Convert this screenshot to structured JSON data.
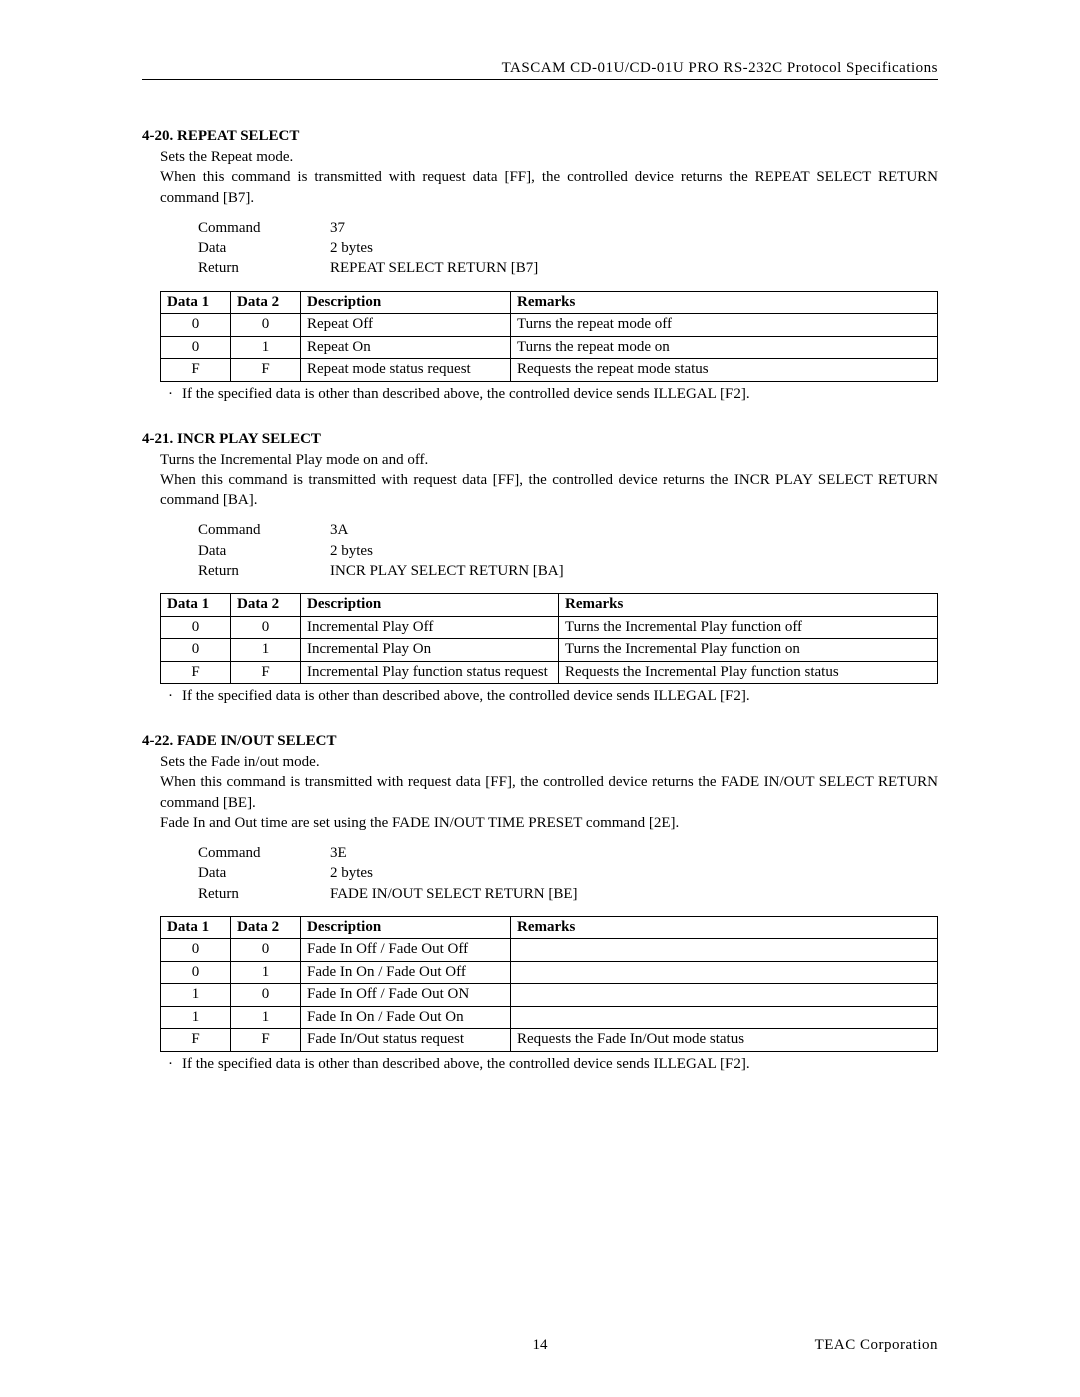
{
  "header": "TASCAM CD-01U/CD-01U PRO RS-232C Protocol  Specifications",
  "sections": [
    {
      "title": "4-20. REPEAT SELECT",
      "para": [
        "Sets the Repeat mode.",
        "When this command is transmitted with request data [FF], the controlled device returns the REPEAT SELECT RETURN command [B7]."
      ],
      "cmd": {
        "Command": "37",
        "Data": "2 bytes",
        "Return": "REPEAT SELECT RETURN [B7]"
      },
      "headers": [
        "Data 1",
        "Data 2",
        "Description",
        "Remarks"
      ],
      "widths": {
        "desc": "210px",
        "rem": "auto"
      },
      "rows": [
        [
          "0",
          "0",
          "Repeat Off",
          "Turns the repeat mode off"
        ],
        [
          "0",
          "1",
          "Repeat On",
          "Turns the repeat mode on"
        ],
        [
          "F",
          "F",
          "Repeat mode status request",
          "Requests the repeat mode status"
        ]
      ],
      "note": "If the specified data is other than described above, the controlled device sends ILLEGAL [F2]."
    },
    {
      "title": "4-21. INCR PLAY SELECT",
      "para": [
        "Turns the Incremental Play mode on and off.",
        "When this command is transmitted with request data [FF], the controlled device returns the INCR PLAY SELECT RETURN command [BA]."
      ],
      "cmd": {
        "Command": "3A",
        "Data": "2 bytes",
        "Return": "INCR PLAY  SELECT RETURN [BA]"
      },
      "headers": [
        "Data 1",
        "Data 2",
        "Description",
        "Remarks"
      ],
      "widths": {
        "desc": "258px",
        "rem": "auto"
      },
      "rows": [
        [
          "0",
          "0",
          "Incremental Play Off",
          "Turns the Incremental Play function off"
        ],
        [
          "0",
          "1",
          "Incremental Play On",
          "Turns the Incremental Play function on"
        ],
        [
          "F",
          "F",
          "Incremental Play function status request",
          "Requests the Incremental Play function status"
        ]
      ],
      "rowJustify": [
        false,
        false,
        true
      ],
      "note": "If the specified data is other than described above, the controlled device sends ILLEGAL [F2]."
    },
    {
      "title": "4-22. FADE IN/OUT SELECT",
      "para": [
        "Sets the Fade in/out mode.",
        "When this command is transmitted with request data [FF], the controlled device returns the FADE IN/OUT SELECT RETURN command [BE].",
        "Fade In and Out time are set using the FADE IN/OUT TIME PRESET command [2E]."
      ],
      "cmd": {
        "Command": "3E",
        "Data": "2 bytes",
        "Return": "FADE IN/OUT SELECT RETURN [BE]"
      },
      "headers": [
        "Data 1",
        "Data 2",
        "Description",
        "Remarks"
      ],
      "widths": {
        "desc": "210px",
        "rem": "auto"
      },
      "rows": [
        [
          "0",
          "0",
          "Fade In Off / Fade Out Off",
          ""
        ],
        [
          "0",
          "1",
          "Fade In On / Fade Out Off",
          ""
        ],
        [
          "1",
          "0",
          "Fade In Off / Fade Out ON",
          ""
        ],
        [
          "1",
          "1",
          "Fade In On / Fade Out On",
          ""
        ],
        [
          "F",
          "F",
          "Fade In/Out status request",
          "Requests the Fade In/Out mode status"
        ]
      ],
      "note": "If the specified data is other than described above, the controlled device sends ILLEGAL [F2]."
    }
  ],
  "footer": {
    "page": "14",
    "corp": "TEAC Corporation"
  }
}
